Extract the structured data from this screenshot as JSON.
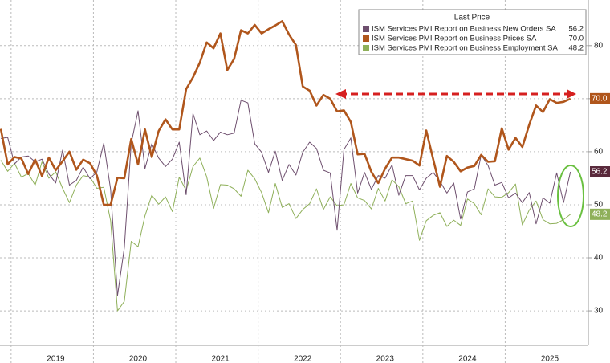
{
  "chart_data": {
    "type": "line",
    "legend_title": "Last Price",
    "legend": "upper right",
    "grid": true,
    "categories": [
      null,
      null,
      null,
      null,
      null,
      null,
      null,
      null,
      "2019",
      null,
      null,
      null,
      null,
      null,
      null,
      null,
      null,
      null,
      null,
      null,
      "2020",
      null,
      null,
      null,
      null,
      null,
      null,
      null,
      null,
      null,
      null,
      null,
      "2021",
      null,
      null,
      null,
      null,
      null,
      null,
      null,
      null,
      null,
      null,
      null,
      "2022",
      null,
      null,
      null,
      null,
      null,
      null,
      null,
      null,
      null,
      null,
      null,
      "2023",
      null,
      null,
      null,
      null,
      null,
      null,
      null,
      null,
      null,
      null,
      null,
      "2024",
      null,
      null,
      null,
      null,
      null,
      null,
      null,
      null,
      null,
      null,
      null,
      "2025",
      null,
      null,
      null
    ],
    "ylim": [
      23.5,
      88.6
    ],
    "yticks": [
      30,
      40,
      50,
      60,
      70,
      80
    ],
    "series": [
      {
        "name": "ISM Services PMI Report on Business New Orders SA",
        "color": "#6e4f6e",
        "tag_color": "#5a2a3c",
        "width": 1,
        "values": [
          62.5,
          62.7,
          57.7,
          59.0,
          59.2,
          58.1,
          58.6,
          55.8,
          54.1,
          60.3,
          53.7,
          54.6,
          57.1,
          54.9,
          56.2,
          61.6,
          52.9,
          32.9,
          41.9,
          61.6,
          67.7,
          56.8,
          61.5,
          58.8,
          57.2,
          58.6,
          61.8,
          51.9,
          67.2,
          63.2,
          63.9,
          62.1,
          63.7,
          63.2,
          63.5,
          69.7,
          69.2,
          61.5,
          59.9,
          56.1,
          60.1,
          54.6,
          57.6,
          55.6,
          59.9,
          61.8,
          60.6,
          56.5,
          56.0,
          45.2,
          60.4,
          62.6,
          52.2,
          56.1,
          52.9,
          55.5,
          55.0,
          57.5,
          51.8,
          55.5,
          55.5,
          52.8,
          55.0,
          56.1,
          54.4,
          52.2,
          54.1,
          47.3,
          52.4,
          53.0,
          59.4,
          57.4,
          53.7,
          54.2,
          51.3,
          52.2,
          50.4,
          52.3,
          46.4,
          51.3,
          50.3,
          56.0,
          50.4,
          56.2
        ],
        "value_labels": [
          null,
          null,
          null,
          null,
          null,
          null,
          null,
          null,
          null,
          null,
          null,
          null,
          null,
          null,
          null,
          null,
          null,
          null,
          null,
          null,
          null,
          null,
          null,
          null,
          null,
          null,
          null,
          null,
          null,
          null,
          null,
          null,
          null,
          null,
          null,
          null,
          null,
          null,
          null,
          null,
          null,
          null,
          null,
          null,
          null,
          null,
          null,
          null,
          null,
          null,
          null,
          null,
          null,
          null,
          null,
          null,
          null,
          null,
          null,
          null,
          null,
          null,
          null,
          null,
          null,
          null,
          null,
          null,
          null,
          null,
          null,
          null,
          null,
          null,
          null,
          null,
          null,
          null,
          null,
          null,
          null,
          null,
          null,
          "56.2"
        ]
      },
      {
        "name": "ISM Services PMI Report on Business Prices SA",
        "color": "#b0561c",
        "tag_color": "#b0561c",
        "width": 2.6,
        "values": [
          64.3,
          57.6,
          59.0,
          58.7,
          55.8,
          58.5,
          55.4,
          58.9,
          56.5,
          58.2,
          60.0,
          56.6,
          58.5,
          57.8,
          55.5,
          50.0,
          50.0,
          55.1,
          55.0,
          62.4,
          57.6,
          64.2,
          59.0,
          63.9,
          66.1,
          64.2,
          64.2,
          71.8,
          74.0,
          76.8,
          80.6,
          79.5,
          82.3,
          75.4,
          77.5,
          82.9,
          82.3,
          83.9,
          82.3,
          83.1,
          83.8,
          84.6,
          82.1,
          80.1,
          72.3,
          71.5,
          68.7,
          70.7,
          70.0,
          67.6,
          67.8,
          65.6,
          59.5,
          59.6,
          56.2,
          54.1,
          56.8,
          58.9,
          58.9,
          58.6,
          58.3,
          57.4,
          64.0,
          58.6,
          53.4,
          59.2,
          58.1,
          56.3,
          57.0,
          57.3,
          59.4,
          58.1,
          58.2,
          64.4,
          60.4,
          62.6,
          60.9,
          65.1,
          68.7,
          67.5,
          69.9,
          69.2,
          69.4,
          70.0
        ],
        "value_labels": [
          null,
          null,
          null,
          null,
          null,
          null,
          null,
          null,
          null,
          null,
          null,
          null,
          null,
          null,
          null,
          null,
          null,
          null,
          null,
          null,
          null,
          null,
          null,
          null,
          null,
          null,
          null,
          null,
          null,
          null,
          null,
          null,
          null,
          null,
          null,
          null,
          null,
          null,
          null,
          null,
          null,
          null,
          null,
          null,
          null,
          null,
          null,
          null,
          null,
          null,
          null,
          null,
          null,
          null,
          null,
          null,
          null,
          null,
          null,
          null,
          null,
          null,
          null,
          null,
          null,
          null,
          null,
          null,
          null,
          null,
          null,
          null,
          null,
          null,
          null,
          null,
          null,
          null,
          null,
          null,
          null,
          null,
          null,
          "70.0"
        ]
      },
      {
        "name": "ISM Services PMI Report on Business Employment SA",
        "color": "#8fb05a",
        "tag_color": "#8fb05a",
        "width": 1,
        "values": [
          58.4,
          56.3,
          57.8,
          55.2,
          55.9,
          53.7,
          58.1,
          55.0,
          56.2,
          53.1,
          50.4,
          53.7,
          55.5,
          55.2,
          53.1,
          53.3,
          47.0,
          30.0,
          31.8,
          43.1,
          42.1,
          47.9,
          51.8,
          50.1,
          51.5,
          48.7,
          55.2,
          52.7,
          57.2,
          58.8,
          55.3,
          49.3,
          53.8,
          53.7,
          53.0,
          51.6,
          56.5,
          54.9,
          52.3,
          48.5,
          54.0,
          49.5,
          50.2,
          47.4,
          49.1,
          50.2,
          53.0,
          49.1,
          51.5,
          49.8,
          50.0,
          54.0,
          51.3,
          50.8,
          49.2,
          53.1,
          50.7,
          54.7,
          53.4,
          50.2,
          50.7,
          43.3,
          47.0,
          48.0,
          48.5,
          45.9,
          47.1,
          46.1,
          51.1,
          50.2,
          48.1,
          53.0,
          51.5,
          51.4,
          52.3,
          53.9,
          46.2,
          49.0,
          50.7,
          47.2,
          46.4,
          46.5,
          47.2,
          48.2
        ],
        "value_labels": [
          null,
          null,
          null,
          null,
          null,
          null,
          null,
          null,
          null,
          null,
          null,
          null,
          null,
          null,
          null,
          null,
          null,
          null,
          null,
          null,
          null,
          null,
          null,
          null,
          null,
          null,
          null,
          null,
          null,
          null,
          null,
          null,
          null,
          null,
          null,
          null,
          null,
          null,
          null,
          null,
          null,
          null,
          null,
          null,
          null,
          null,
          null,
          null,
          null,
          null,
          null,
          null,
          null,
          null,
          null,
          null,
          null,
          null,
          null,
          null,
          null,
          null,
          null,
          null,
          null,
          null,
          null,
          null,
          null,
          null,
          null,
          null,
          null,
          null,
          null,
          null,
          null,
          null,
          null,
          null,
          null,
          null,
          null,
          "48.2"
        ]
      }
    ]
  }
}
